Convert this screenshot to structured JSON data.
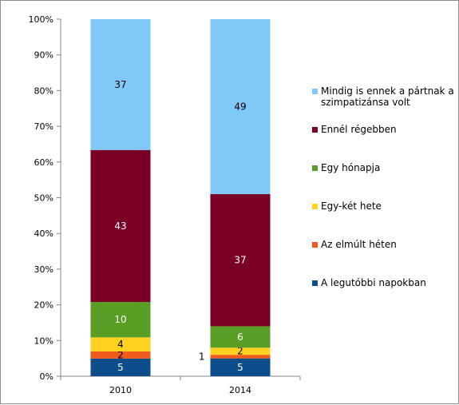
{
  "chart_data": {
    "type": "bar",
    "stacked": true,
    "percent_stacked": true,
    "categories": [
      "2010",
      "2014"
    ],
    "series": [
      {
        "name": "A legutóbbi napokban",
        "color": "#0e4d8c",
        "values": [
          5,
          5
        ]
      },
      {
        "name": "Az elmúlt héten",
        "color": "#f05a1a",
        "values": [
          2,
          1
        ]
      },
      {
        "name": "Egy-két hete",
        "color": "#ffd21f",
        "values": [
          4,
          2
        ]
      },
      {
        "name": "Egy hónapja",
        "color": "#5a9e25",
        "values": [
          10,
          6
        ]
      },
      {
        "name": "Ennél régebben",
        "color": "#7b0025",
        "values": [
          43,
          37
        ]
      },
      {
        "name": "Mindig is ennek a pártnak a szimpatizánsa volt",
        "name_lines": [
          "Mindig is ennek a pártnak a",
          "szimpatizánsa volt"
        ],
        "color": "#80c8f6",
        "values": [
          37,
          49
        ]
      }
    ],
    "y_ticks": [
      "0%",
      "10%",
      "20%",
      "30%",
      "40%",
      "50%",
      "60%",
      "70%",
      "80%",
      "90%",
      "100%"
    ],
    "ylim": [
      0,
      100
    ],
    "legend_position": "right",
    "grid": false
  }
}
